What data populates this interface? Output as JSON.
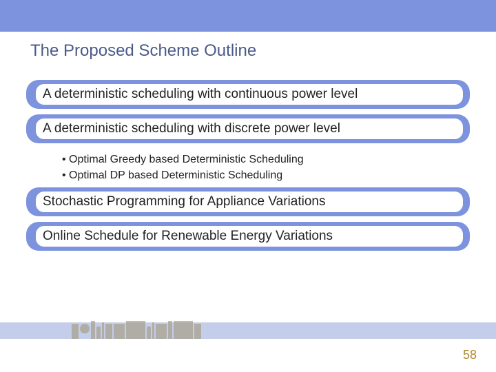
{
  "colors": {
    "band_bg": "#7d93de",
    "band_inner_bg": "#ffffff",
    "title_color": "#4a5a8a",
    "text_color": "#222222",
    "bottom_band": "#c4cde9",
    "page_number_color": "#b08830"
  },
  "title": "The Proposed Scheme Outline",
  "bands": [
    {
      "label": "A deterministic scheduling with continuous power level"
    },
    {
      "label": "A deterministic scheduling with discrete power level",
      "bullets": [
        "Optimal Greedy based Deterministic Scheduling",
        "Optimal DP based Deterministic Scheduling"
      ]
    },
    {
      "label": "Stochastic Programming for Appliance Variations"
    },
    {
      "label": "Online Schedule for Renewable Energy Variations"
    }
  ],
  "page_number": "58"
}
